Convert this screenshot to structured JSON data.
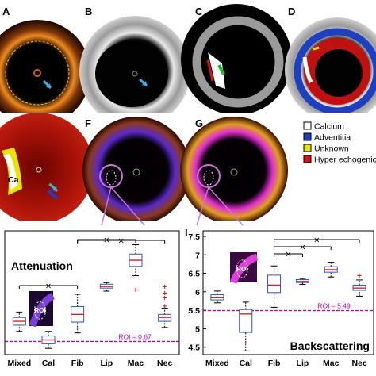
{
  "panels": {
    "top_row": [
      "A",
      "B",
      "C",
      "D"
    ],
    "middle_row": [
      "F",
      "G"
    ],
    "roi_label": "ROI",
    "ca_label": "Ca"
  },
  "legend": {
    "items": [
      {
        "label": "Calcium",
        "color": "#ffffff"
      },
      {
        "label": "Adventitia",
        "color": "#1e3fbf"
      },
      {
        "label": "Unknown",
        "color": "#e6e600"
      },
      {
        "label": "Hyper echogenicit",
        "color": "#e01010"
      }
    ]
  },
  "chart_data": [
    {
      "type": "box",
      "panel_label": "",
      "title": "Attenuation",
      "categories": [
        "Mixed",
        "Cal",
        "Fib",
        "Lip",
        "Mac",
        "Nec"
      ],
      "threshold": {
        "label": "ROI = 0.67",
        "value": 0.67,
        "color": "#c000c0"
      },
      "boxes": [
        {
          "category": "Mixed",
          "whisker_low": 0.8,
          "q1": 0.88,
          "median": 0.93,
          "q3": 0.98,
          "whisker_high": 1.05,
          "outliers": []
        },
        {
          "category": "Cal",
          "whisker_low": 0.58,
          "q1": 0.64,
          "median": 0.69,
          "q3": 0.74,
          "whisker_high": 0.8,
          "outliers": []
        },
        {
          "category": "Fib",
          "whisker_low": 0.78,
          "q1": 0.92,
          "median": 1.02,
          "q3": 1.12,
          "whisker_high": 1.28,
          "outliers": []
        },
        {
          "category": "Lip",
          "whisker_low": 1.32,
          "q1": 1.36,
          "median": 1.38,
          "q3": 1.41,
          "whisker_high": 1.43,
          "outliers": []
        },
        {
          "category": "Mac",
          "whisker_low": 1.52,
          "q1": 1.64,
          "median": 1.72,
          "q3": 1.8,
          "whisker_high": 1.92,
          "outliers": [
            1.34
          ]
        },
        {
          "category": "Nec",
          "whisker_low": 0.85,
          "q1": 0.93,
          "median": 0.98,
          "q3": 1.02,
          "whisker_high": 1.1,
          "outliers": [
            1.13,
            1.24,
            1.3,
            1.38
          ]
        }
      ],
      "significance": [
        {
          "from": "Fib",
          "to": "Nec",
          "mark": "×"
        },
        {
          "from": "Fib",
          "to": "Mac",
          "mark": "×"
        },
        {
          "from": "Mixed",
          "to": "Fib",
          "mark": "×"
        }
      ]
    },
    {
      "type": "box",
      "panel_label": "I",
      "title": "Backscattering",
      "categories": [
        "Mixed",
        "Cal",
        "Fib",
        "Lip",
        "Mac",
        "Nec"
      ],
      "yticks": [
        "4.5",
        "5",
        "5.5",
        "6",
        "6.5",
        "7",
        "7.5"
      ],
      "ylim": [
        4.3,
        7.65
      ],
      "threshold": {
        "label": "ROI = 5.49",
        "value": 5.49,
        "color": "#c000c0"
      },
      "boxes": [
        {
          "category": "Mixed",
          "whisker_low": 5.7,
          "q1": 5.78,
          "median": 5.84,
          "q3": 5.92,
          "whisker_high": 6.02,
          "outliers": []
        },
        {
          "category": "Cal",
          "whisker_low": 4.4,
          "q1": 4.9,
          "median": 5.4,
          "q3": 5.52,
          "whisker_high": 5.72,
          "outliers": []
        },
        {
          "category": "Fib",
          "whisker_low": 5.58,
          "q1": 5.98,
          "median": 6.18,
          "q3": 6.45,
          "whisker_high": 6.7,
          "outliers": []
        },
        {
          "category": "Lip",
          "whisker_low": 6.2,
          "q1": 6.25,
          "median": 6.28,
          "q3": 6.33,
          "whisker_high": 6.36,
          "outliers": []
        },
        {
          "category": "Mac",
          "whisker_low": 6.4,
          "q1": 6.53,
          "median": 6.6,
          "q3": 6.68,
          "whisker_high": 6.8,
          "outliers": []
        },
        {
          "category": "Nec",
          "whisker_low": 5.88,
          "q1": 6.04,
          "median": 6.1,
          "q3": 6.18,
          "whisker_high": 6.32,
          "outliers": [
            6.45
          ]
        }
      ],
      "significance": [
        {
          "from": "Fib",
          "to": "Nec",
          "mark": "×"
        },
        {
          "from": "Fib",
          "to": "Mac",
          "mark": "×"
        },
        {
          "from": "Fib",
          "to": "Lip",
          "mark": "×"
        }
      ]
    }
  ]
}
